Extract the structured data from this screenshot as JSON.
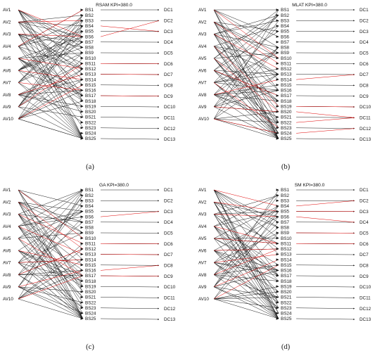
{
  "figure": {
    "panels": [
      {
        "title": "RSAM KPI=380.0",
        "caption": "(a)",
        "red_edges": [
          [
            0,
            5
          ],
          [
            1,
            2
          ],
          [
            2,
            5
          ],
          [
            3,
            0
          ],
          [
            4,
            11
          ],
          [
            5,
            13
          ],
          [
            6,
            15
          ],
          [
            7,
            12
          ],
          [
            8,
            10
          ],
          [
            9,
            14
          ]
        ],
        "red_bs_dc": [
          [
            5,
            1
          ],
          [
            10,
            5
          ],
          [
            12,
            6
          ],
          [
            16,
            8
          ],
          [
            3,
            2
          ]
        ]
      },
      {
        "title": "MLAT KPI=380.0",
        "caption": "(b)",
        "red_edges": [
          [
            1,
            10
          ],
          [
            2,
            11
          ],
          [
            3,
            18
          ],
          [
            4,
            19
          ],
          [
            5,
            16
          ],
          [
            6,
            22
          ],
          [
            7,
            13
          ],
          [
            8,
            19
          ],
          [
            9,
            23
          ],
          [
            0,
            9
          ]
        ],
        "red_bs_dc": [
          [
            18,
            9
          ],
          [
            19,
            10
          ],
          [
            23,
            11
          ],
          [
            21,
            10
          ],
          [
            13,
            6
          ]
        ]
      },
      {
        "title": "GA KPI=380.0",
        "caption": "(c)",
        "red_edges": [
          [
            0,
            9
          ],
          [
            1,
            11
          ],
          [
            2,
            10
          ],
          [
            3,
            12
          ],
          [
            4,
            16
          ],
          [
            5,
            14
          ],
          [
            6,
            13
          ],
          [
            7,
            11
          ],
          [
            8,
            15
          ],
          [
            9,
            16
          ]
        ],
        "red_bs_dc": [
          [
            5,
            2
          ],
          [
            10,
            5
          ],
          [
            12,
            6
          ],
          [
            16,
            8
          ],
          [
            15,
            7
          ]
        ]
      },
      {
        "title": "SM KPI=380.0",
        "caption": "(d)",
        "red_edges": [
          [
            0,
            3
          ],
          [
            1,
            4
          ],
          [
            2,
            5
          ],
          [
            3,
            10
          ],
          [
            4,
            10
          ],
          [
            5,
            11
          ],
          [
            6,
            12
          ],
          [
            7,
            11
          ],
          [
            8,
            13
          ],
          [
            9,
            14
          ]
        ],
        "red_bs_dc": [
          [
            3,
            1
          ],
          [
            4,
            2
          ],
          [
            5,
            3
          ],
          [
            10,
            5
          ],
          [
            8,
            4
          ]
        ]
      }
    ],
    "av_labels": [
      "AV1",
      "AV2",
      "AV3",
      "AV4",
      "AV5",
      "AV6",
      "AV7",
      "AV8",
      "AV9",
      "AV10"
    ],
    "bs_labels": [
      "BS1",
      "BS2",
      "BS3",
      "BS4",
      "BS5",
      "BS6",
      "BS7",
      "BS8",
      "BS9",
      "BS10",
      "BS11",
      "BS12",
      "BS13",
      "BS14",
      "BS15",
      "BS16",
      "BS17",
      "BS18",
      "BS19",
      "BS20",
      "BS21",
      "BS22",
      "BS23",
      "BS24",
      "BS25"
    ],
    "dc_labels": [
      "DC1",
      "DC2",
      "DC3",
      "DC4",
      "DC5",
      "DC6",
      "DC7",
      "DC8",
      "DC9",
      "DC10",
      "DC11",
      "DC12",
      "DC13"
    ],
    "colors": {
      "default_edge": "#1a1a1a",
      "highlight_edge": "#e00000",
      "text": "#111111"
    }
  }
}
